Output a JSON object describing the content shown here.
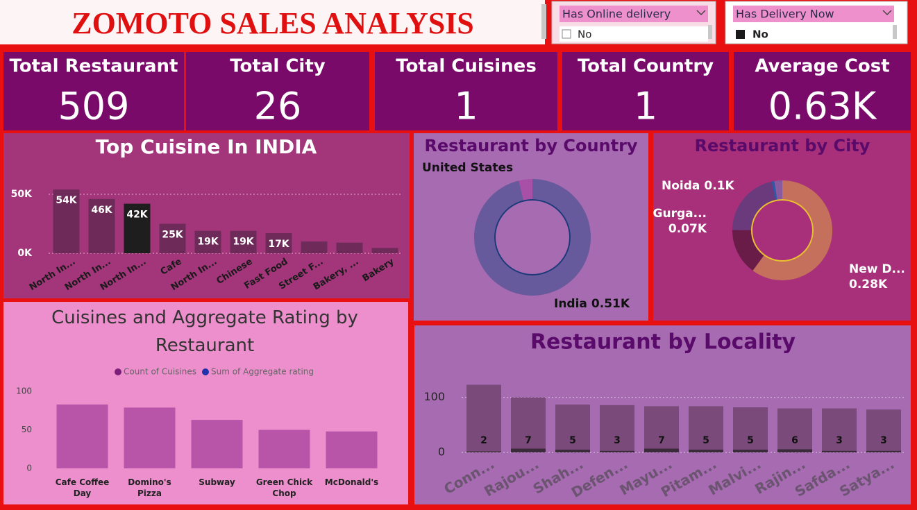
{
  "header": {
    "title": "ZOMOTO SALES ANALYSIS"
  },
  "slicers": [
    {
      "title": "Has Online delivery",
      "option": "No"
    },
    {
      "title": "Has Delivery Now",
      "option": "No"
    }
  ],
  "kpis": [
    {
      "label": "Total Restaurant",
      "value": 509
    },
    {
      "label": "Total City",
      "value": 26
    },
    {
      "label": "Total Cuisines",
      "value": 1
    },
    {
      "label": "Total Country",
      "value": 1
    },
    {
      "label": "Average Cost",
      "value": "0.63K"
    }
  ],
  "chart_data": [
    {
      "type": "bar",
      "title": "Top Cuisine In INDIA",
      "categories": [
        "North In...",
        "North In...",
        "North In...",
        "Cafe",
        "North In...",
        "Chinese",
        "Fast Food",
        "Street F...",
        "Bakery, ...",
        "Bakery"
      ],
      "values": [
        54000,
        46000,
        42000,
        25000,
        19000,
        19000,
        17000,
        10000,
        9000,
        4500
      ],
      "value_labels": [
        "54K",
        "46K",
        "42K",
        "25K",
        "19K",
        "19K",
        "17K",
        null,
        null,
        null
      ],
      "colors": [
        "#6e2a58",
        "#6e2a58",
        "#1e1e1e",
        "#6e2a58",
        "#6e2a58",
        "#6e2a58",
        "#6e2a58",
        "#6e2a58",
        "#6e2a58",
        "#6e2a58"
      ],
      "ylim": [
        0,
        60000
      ],
      "yticks": [
        {
          "value": 0,
          "label": "0K"
        },
        {
          "value": 50000,
          "label": "50K"
        }
      ],
      "grid": true
    },
    {
      "type": "donut",
      "title": "Restaurant by Country",
      "categories": [
        "India",
        "United States"
      ],
      "values": [
        510,
        20
      ],
      "value_labels": [
        "0.51K",
        null
      ],
      "colors": [
        "#675a9c",
        "#a84fa8"
      ]
    },
    {
      "type": "donut",
      "title": "Restaurant by City",
      "categories": [
        "New D...",
        "Gurga...",
        "Noida",
        null,
        null
      ],
      "values": [
        280,
        70,
        100,
        4,
        12
      ],
      "value_labels": [
        "0.28K",
        "0.07K",
        "0.1K",
        null,
        null
      ],
      "colors": [
        "#c4705c",
        "#6a1c48",
        "#6a3a7c",
        "#2a5aa8",
        "#8a5aa0"
      ]
    },
    {
      "type": "bar",
      "title": "Cuisines and Aggregate Rating by Restaurant",
      "legend": [
        {
          "name": "Count of Cuisines",
          "color": "#7b1f7b"
        },
        {
          "name": "Sum of Aggregate rating",
          "color": "#2233aa"
        }
      ],
      "categories": [
        "Cafe Coffee Day",
        "Domino's Pizza",
        "Subway",
        "Green Chick Chop",
        "McDonald's"
      ],
      "values": [
        83,
        79,
        63,
        50,
        48
      ],
      "color": "#b855a8",
      "ylim": [
        0,
        110
      ],
      "yticks": [
        0,
        50,
        100
      ],
      "grid": false
    },
    {
      "type": "stacked-bar",
      "title": "Restaurant by Locality",
      "categories": [
        "Conn...",
        "Rajou...",
        "Shah...",
        "Defen...",
        "Mayu...",
        "Pitam...",
        "Malvi...",
        "Rajin...",
        "Safda...",
        "Satya..."
      ],
      "series": [
        {
          "color": "#3a2a3a",
          "values": [
            2,
            7,
            5,
            3,
            7,
            5,
            5,
            6,
            3,
            3
          ]
        },
        {
          "color": "#7a4a7a",
          "values": [
            121,
            93,
            82,
            83,
            77,
            79,
            77,
            74,
            77,
            75
          ]
        }
      ],
      "ylim": [
        0,
        135
      ],
      "yticks": [
        0,
        100
      ],
      "grid": true
    }
  ]
}
